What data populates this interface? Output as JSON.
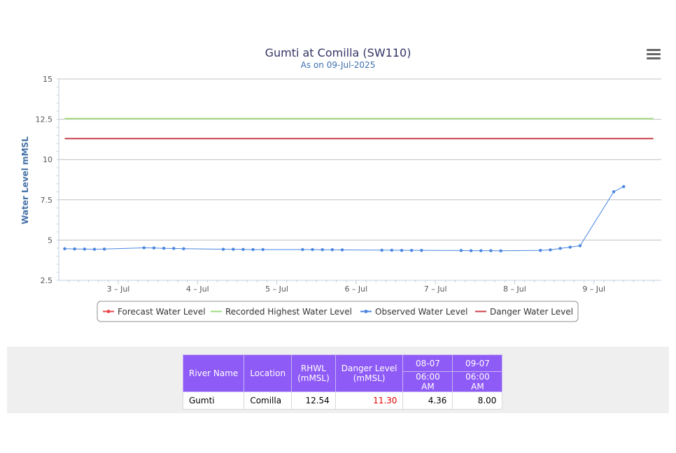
{
  "chart_data": {
    "type": "line",
    "title": "Gumti at Comilla (SW110)",
    "subtitle": "As on 09-Jul-2025",
    "ylabel": "Water Level mMSL",
    "xlabel": "",
    "ylim": [
      2.5,
      15
    ],
    "yticks": [
      2.5,
      5,
      7.5,
      10,
      12.5,
      15
    ],
    "ytick_labels": [
      "2.5",
      "5",
      "7.5",
      "10",
      "12.5",
      "15"
    ],
    "xlim_days": [
      2.25,
      9.85
    ],
    "xticks": [
      {
        "label": "3 – Jul",
        "day": 3
      },
      {
        "label": "4 – Jul",
        "day": 4
      },
      {
        "label": "5 – Jul",
        "day": 5
      },
      {
        "label": "6 – Jul",
        "day": 6
      },
      {
        "label": "7 – Jul",
        "day": 7
      },
      {
        "label": "8 – Jul",
        "day": 8
      },
      {
        "label": "9 – Jul",
        "day": 9
      }
    ],
    "grid": true,
    "legend_position": "bottom",
    "series": [
      {
        "name": "Forecast Water Level",
        "color": "#e8474d",
        "marker": true,
        "values": []
      },
      {
        "name": "Recorded Highest Water Level",
        "color": "#9edb7e",
        "marker": false,
        "constant": 12.54,
        "x_range": [
          2.325,
          9.75
        ]
      },
      {
        "name": "Observed Water Level",
        "color": "#4a86e0",
        "marker": true,
        "points": [
          [
            2.325,
            4.46
          ],
          [
            2.45,
            4.45
          ],
          [
            2.575,
            4.44
          ],
          [
            2.7,
            4.43
          ],
          [
            2.825,
            4.44
          ],
          [
            3.325,
            4.52
          ],
          [
            3.45,
            4.51
          ],
          [
            3.575,
            4.49
          ],
          [
            3.7,
            4.48
          ],
          [
            3.825,
            4.46
          ],
          [
            4.325,
            4.43
          ],
          [
            4.45,
            4.43
          ],
          [
            4.575,
            4.42
          ],
          [
            4.7,
            4.41
          ],
          [
            4.825,
            4.41
          ],
          [
            5.325,
            4.41
          ],
          [
            5.45,
            4.41
          ],
          [
            5.575,
            4.4
          ],
          [
            5.7,
            4.4
          ],
          [
            5.825,
            4.39
          ],
          [
            6.325,
            4.37
          ],
          [
            6.45,
            4.37
          ],
          [
            6.575,
            4.36
          ],
          [
            6.7,
            4.36
          ],
          [
            6.825,
            4.36
          ],
          [
            7.325,
            4.35
          ],
          [
            7.45,
            4.34
          ],
          [
            7.575,
            4.34
          ],
          [
            7.7,
            4.34
          ],
          [
            7.825,
            4.33
          ],
          [
            8.325,
            4.36
          ],
          [
            8.45,
            4.39
          ],
          [
            8.575,
            4.48
          ],
          [
            8.7,
            4.56
          ],
          [
            8.825,
            4.65
          ],
          [
            9.25,
            8.0
          ],
          [
            9.375,
            8.32
          ]
        ]
      },
      {
        "name": "Danger Water Level",
        "color": "#c9414b",
        "marker": false,
        "constant": 11.3,
        "x_range": [
          2.325,
          9.75
        ]
      }
    ]
  },
  "colors": {
    "title": "#333366",
    "subtitle": "#3d6fb0",
    "axis_label": "#4572a7",
    "tick_label": "#555555",
    "gridline": "#c0c0c0",
    "axis_line": "#c0d0e0"
  },
  "menu": {
    "icon": "hamburger-menu-icon"
  },
  "table": {
    "headers": {
      "river_name": "River Name",
      "location": "Location",
      "rhwl_line1": "RHWL",
      "rhwl_line2": "(mMSL)",
      "danger_line1": "Danger Level",
      "danger_line2": "(mMSL)",
      "date1": "08-07",
      "date2": "09-07",
      "time1": "06:00 AM",
      "time2": "06:00 AM"
    },
    "row": {
      "river_name": "Gumti",
      "location": "Comilla",
      "rhwl": "12.54",
      "danger": "11.30",
      "value1": "4.36",
      "value2": "8.00"
    }
  }
}
